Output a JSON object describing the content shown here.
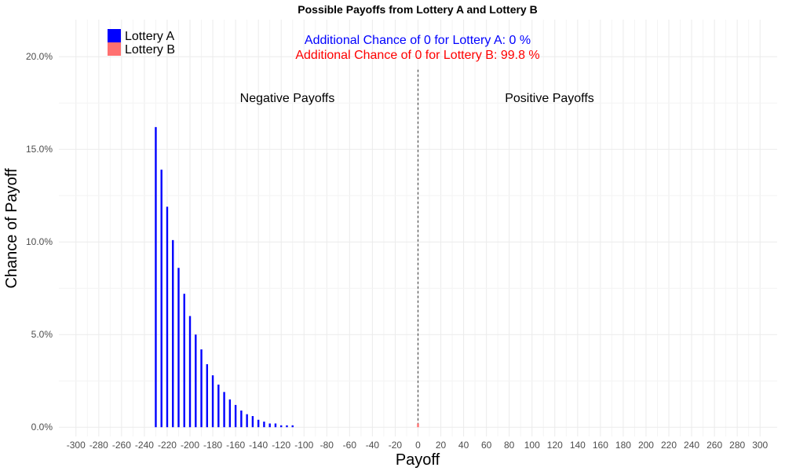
{
  "chart_data": {
    "type": "bar",
    "title": "Possible Payoffs from Lottery A and Lottery B",
    "xlabel": "Payoff",
    "ylabel": "Chance of Payoff",
    "xlim": [
      -315,
      315
    ],
    "ylim": [
      -0.005,
      0.22
    ],
    "x_ticks": [
      -300,
      -280,
      -260,
      -240,
      -220,
      -200,
      -180,
      -160,
      -140,
      -120,
      -100,
      -80,
      -60,
      -40,
      -20,
      0,
      20,
      40,
      60,
      80,
      100,
      120,
      140,
      160,
      180,
      200,
      220,
      240,
      260,
      280,
      300
    ],
    "y_ticks": [
      0,
      0.05,
      0.1,
      0.15,
      0.2
    ],
    "y_tick_labels": [
      "0.0%",
      "5.0%",
      "10.0%",
      "15.0%",
      "20.0%"
    ],
    "grid": true,
    "legend_position": "top-left",
    "series": [
      {
        "name": "Lottery A",
        "color": "#0000FF",
        "x": [
          -230,
          -225,
          -220,
          -215,
          -210,
          -205,
          -200,
          -195,
          -190,
          -185,
          -180,
          -175,
          -170,
          -165,
          -160,
          -155,
          -150,
          -145,
          -140,
          -135,
          -130,
          -125,
          -120,
          -115,
          -110
        ],
        "values": [
          0.162,
          0.139,
          0.119,
          0.101,
          0.086,
          0.072,
          0.06,
          0.05,
          0.042,
          0.034,
          0.028,
          0.023,
          0.019,
          0.015,
          0.012,
          0.009,
          0.007,
          0.006,
          0.004,
          0.003,
          0.002,
          0.002,
          0.001,
          0.001,
          0.001
        ]
      },
      {
        "name": "Lottery B",
        "color": "#FF7070",
        "x": [
          0
        ],
        "values": [
          0.002
        ]
      }
    ],
    "zero_line": {
      "x": 0,
      "color": "#555555"
    },
    "annotations": {
      "line_a": "Additional Chance of 0 for Lottery A:  0 %",
      "line_a_color": "#0000FF",
      "line_b": "Additional Chance of 0 for Lottery B:  99.8 %",
      "line_b_color": "#FF0000",
      "negative_label": "Negative Payoffs",
      "positive_label": "Positive Payoffs"
    }
  }
}
